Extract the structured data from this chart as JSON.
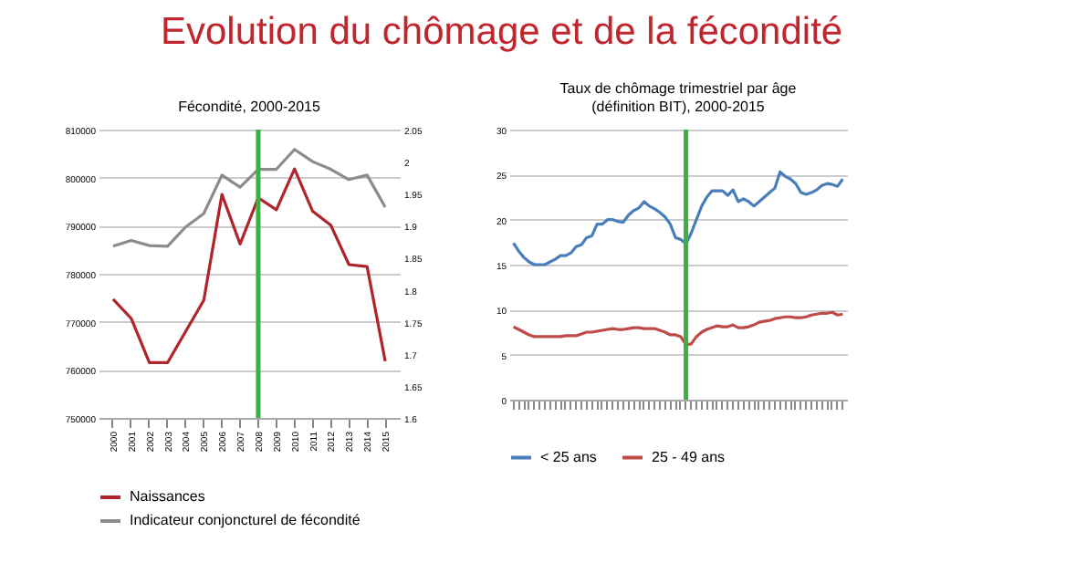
{
  "chart_data": [
    {
      "type": "line",
      "title": "Fécondité, 2000-2015",
      "annotations": [
        "Evolution du chômage et de la fécondité"
      ],
      "categories": [
        "2000",
        "2001",
        "2002",
        "2003",
        "2004",
        "2005",
        "2006",
        "2007",
        "2008",
        "2009",
        "2010",
        "2011",
        "2012",
        "2013",
        "2014",
        "2015"
      ],
      "series": [
        {
          "name": "Naissances",
          "color": "#b0242c",
          "values": [
            774700,
            770700,
            761500,
            761500,
            768000,
            774500,
            796500,
            786200,
            795800,
            793300,
            801800,
            793000,
            790100,
            781900,
            781500,
            761800
          ]
        },
        {
          "name": "Indicateur conjoncturel de fécondité",
          "color": "#8c8c8c",
          "axis": "y2",
          "values": [
            1.868,
            1.877,
            1.869,
            1.868,
            1.898,
            1.919,
            1.979,
            1.96,
            1.988,
            1.988,
            2.019,
            2.0,
            1.988,
            1.972,
            1.979,
            1.929
          ]
        }
      ],
      "ylim": [
        750000,
        810000
      ],
      "yticks": [
        750000,
        760000,
        770000,
        780000,
        790000,
        800000,
        810000
      ],
      "y2lim": [
        1.6,
        2.05
      ],
      "y2ticks": [
        1.6,
        1.65,
        1.7,
        1.75,
        1.8,
        1.85,
        1.9,
        1.95,
        2,
        2.05
      ],
      "ref_lines": [
        {
          "axis": "x",
          "value": "2008",
          "color": "#3cb043"
        }
      ],
      "grid": "y",
      "legend": "bottom",
      "marker": "none"
    },
    {
      "type": "line",
      "title": "Taux de chômage trimestriel par âge\n(définition BIT), 2000-2015",
      "categories": [
        null,
        null,
        null,
        null,
        null,
        null,
        null,
        null,
        null,
        null,
        null,
        null,
        null,
        null,
        null,
        null,
        null,
        null,
        null,
        null,
        null,
        null,
        null,
        null,
        null,
        null,
        null,
        null,
        null,
        null,
        null,
        null,
        null,
        null,
        null,
        null,
        null,
        null,
        null,
        null,
        null,
        null,
        null,
        null,
        null,
        null,
        null,
        null,
        null,
        null,
        null,
        null,
        null,
        null,
        null,
        null,
        null,
        null,
        null,
        null,
        null,
        null,
        null,
        null
      ],
      "series": [
        {
          "name": "< 25 ans",
          "color": "#4a7ebb",
          "values": [
            17.4,
            16.5,
            15.8,
            15.3,
            15,
            15,
            15,
            15.3,
            15.6,
            16,
            16,
            16.3,
            17,
            17.2,
            18,
            18.2,
            19.5,
            19.5,
            20,
            20,
            19.8,
            19.7,
            20.5,
            21,
            21.3,
            22,
            21.5,
            21.2,
            20.8,
            20.3,
            19.5,
            18,
            17.8,
            17.3,
            18.5,
            20,
            21.5,
            22.5,
            23.2,
            23.2,
            23.2,
            22.7,
            23.3,
            22,
            22.3,
            22,
            21.5,
            22,
            22.5,
            23,
            23.5,
            25.3,
            24.8,
            24.5,
            24,
            23,
            22.8,
            23,
            23.3,
            23.8,
            24,
            23.9,
            23.7,
            24.5
          ]
        },
        {
          "name": "25 - 49 ans",
          "color": "#be4b48",
          "values": [
            8.1,
            7.8,
            7.5,
            7.2,
            7,
            7,
            7,
            7,
            7,
            7,
            7.1,
            7.1,
            7.1,
            7.3,
            7.5,
            7.5,
            7.6,
            7.7,
            7.8,
            7.9,
            7.8,
            7.8,
            7.9,
            8,
            8,
            7.9,
            7.9,
            7.9,
            7.7,
            7.5,
            7.2,
            7.2,
            7,
            6.1,
            6.2,
            7,
            7.5,
            7.8,
            8,
            8.2,
            8.1,
            8.1,
            8.3,
            8,
            8,
            8.1,
            8.3,
            8.6,
            8.7,
            8.8,
            9,
            9.1,
            9.2,
            9.2,
            9.1,
            9.1,
            9.2,
            9.4,
            9.5,
            9.6,
            9.6,
            9.7,
            9.4,
            9.5
          ]
        }
      ],
      "ylim": [
        0,
        30
      ],
      "yticks": [
        0,
        5,
        10,
        15,
        20,
        25,
        30
      ],
      "grid": "y",
      "legend": "bottom",
      "marker": "none"
    }
  ]
}
